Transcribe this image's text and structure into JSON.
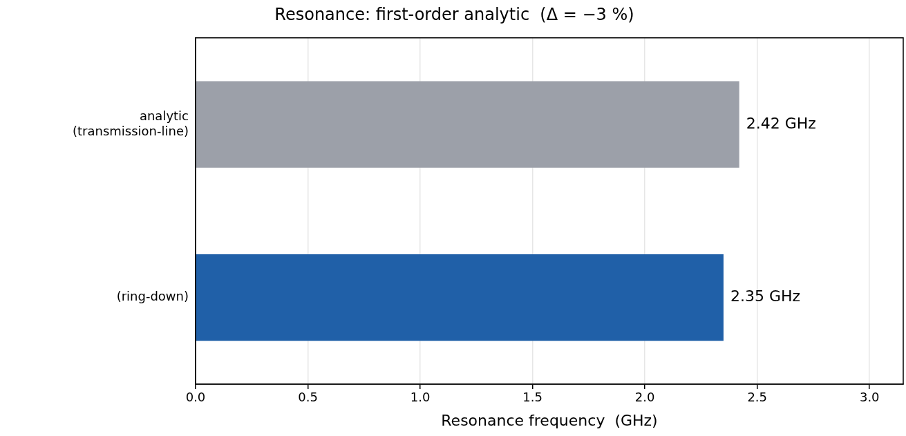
{
  "chart_data": {
    "type": "bar",
    "orientation": "horizontal",
    "title": "Resonance: first-order analytic  (Δ = −3 %)",
    "xlabel": "Resonance frequency  (GHz)",
    "categories": [
      "analytic\n(transmission-line)",
      "(ring-down)"
    ],
    "values": [
      2.42,
      2.35
    ],
    "colors": [
      "#9ca0a9",
      "#2060a8"
    ],
    "value_labels": [
      "2.42 GHz",
      "2.35 GHz"
    ],
    "xlim": [
      0,
      3.15
    ],
    "xticks": [
      {
        "value": 0,
        "label": "0.0"
      },
      {
        "value": 0.5,
        "label": "0.5"
      },
      {
        "value": 1,
        "label": "1.0"
      },
      {
        "value": 1.5,
        "label": "1.5"
      },
      {
        "value": 2,
        "label": "2.0"
      },
      {
        "value": 2.5,
        "label": "2.5"
      },
      {
        "value": 3,
        "label": "3.0"
      }
    ],
    "grid": "x",
    "legend": false
  }
}
